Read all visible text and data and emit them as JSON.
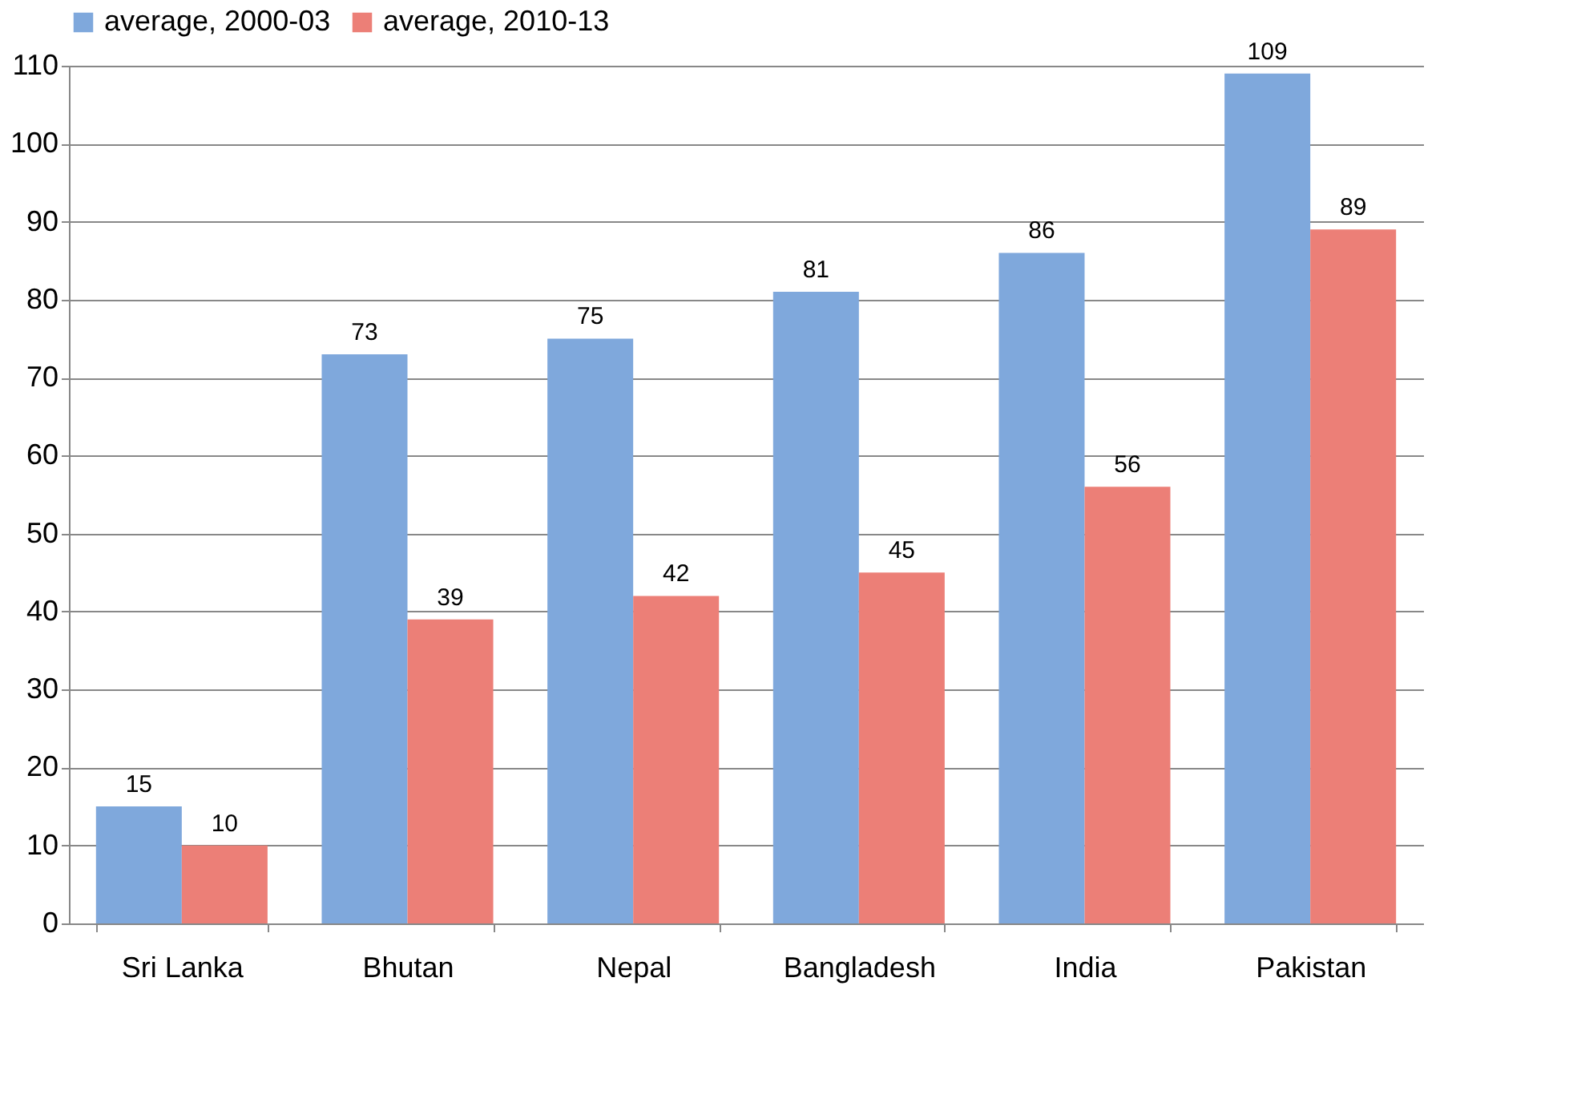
{
  "chart_data": {
    "type": "bar",
    "categories": [
      "Sri Lanka",
      "Bhutan",
      "Nepal",
      "Bangladesh",
      "India",
      "Pakistan"
    ],
    "series": [
      {
        "name": "average, 2000-03",
        "color": "#7fa8dc",
        "values": [
          15,
          73,
          75,
          81,
          86,
          109
        ]
      },
      {
        "name": "average, 2010-13",
        "color": "#ec7f77",
        "values": [
          10,
          39,
          42,
          45,
          56,
          89
        ]
      }
    ],
    "ylim": [
      0,
      110
    ],
    "yticks": [
      0,
      10,
      20,
      30,
      40,
      50,
      60,
      70,
      80,
      90,
      100,
      110
    ],
    "grid": "y",
    "legend": "top",
    "data_labels": true
  }
}
